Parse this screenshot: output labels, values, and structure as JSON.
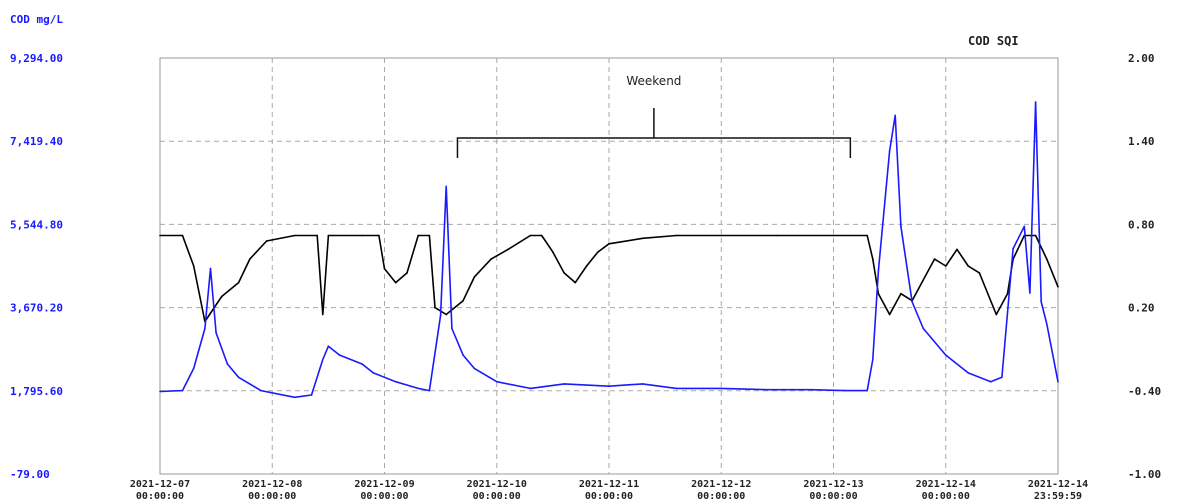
{
  "chart_data": {
    "type": "line",
    "title": "",
    "y_left": {
      "label": "COD mg/L",
      "min": -79.0,
      "max": 9294.0,
      "ticks": [
        "9,294.00",
        "7,419.40",
        "5,544.80",
        "3,670.20",
        "1,795.60",
        "-79.00"
      ],
      "tick_values": [
        9294.0,
        7419.4,
        5544.8,
        3670.2,
        1795.6,
        -79.0
      ],
      "color": "#1a1aff"
    },
    "y_right": {
      "label": "COD SQI",
      "min": -1.0,
      "max": 2.0,
      "ticks": [
        "2.00",
        "1.40",
        "0.80",
        "0.20",
        "-0.40",
        "-1.00"
      ],
      "tick_values": [
        2.0,
        1.4,
        0.8,
        0.2,
        -0.4,
        -1.0
      ],
      "color": "#222222"
    },
    "x": {
      "min": 0,
      "max": 7.9999,
      "ticks": [
        {
          "pos": 0,
          "date": "2021-12-07",
          "time": "00:00:00"
        },
        {
          "pos": 1,
          "date": "2021-12-08",
          "time": "00:00:00"
        },
        {
          "pos": 2,
          "date": "2021-12-09",
          "time": "00:00:00"
        },
        {
          "pos": 3,
          "date": "2021-12-10",
          "time": "00:00:00"
        },
        {
          "pos": 4,
          "date": "2021-12-11",
          "time": "00:00:00"
        },
        {
          "pos": 5,
          "date": "2021-12-12",
          "time": "00:00:00"
        },
        {
          "pos": 6,
          "date": "2021-12-13",
          "time": "00:00:00"
        },
        {
          "pos": 7,
          "date": "2021-12-14",
          "time": "00:00:00"
        },
        {
          "pos": 7.9999,
          "date": "2021-12-14",
          "time": "23:59:59"
        }
      ]
    },
    "grid": true,
    "annotation": {
      "text": "Weekend",
      "x_start": 2.65,
      "x_end": 6.15
    },
    "series": [
      {
        "axis": "right",
        "color": "#000000",
        "points": [
          [
            0.0,
            0.72
          ],
          [
            0.2,
            0.72
          ],
          [
            0.3,
            0.5
          ],
          [
            0.4,
            0.1
          ],
          [
            0.55,
            0.28
          ],
          [
            0.7,
            0.38
          ],
          [
            0.8,
            0.55
          ],
          [
            0.95,
            0.68
          ],
          [
            1.2,
            0.72
          ],
          [
            1.4,
            0.72
          ],
          [
            1.45,
            0.15
          ],
          [
            1.5,
            0.72
          ],
          [
            1.8,
            0.72
          ],
          [
            1.95,
            0.72
          ],
          [
            2.0,
            0.48
          ],
          [
            2.1,
            0.38
          ],
          [
            2.2,
            0.45
          ],
          [
            2.3,
            0.72
          ],
          [
            2.4,
            0.72
          ],
          [
            2.45,
            0.2
          ],
          [
            2.55,
            0.15
          ],
          [
            2.7,
            0.25
          ],
          [
            2.8,
            0.42
          ],
          [
            2.95,
            0.55
          ],
          [
            3.1,
            0.62
          ],
          [
            3.3,
            0.72
          ],
          [
            3.4,
            0.72
          ],
          [
            3.5,
            0.6
          ],
          [
            3.6,
            0.45
          ],
          [
            3.7,
            0.38
          ],
          [
            3.8,
            0.5
          ],
          [
            3.9,
            0.6
          ],
          [
            4.0,
            0.66
          ],
          [
            4.3,
            0.7
          ],
          [
            4.6,
            0.72
          ],
          [
            5.0,
            0.72
          ],
          [
            5.5,
            0.72
          ],
          [
            6.0,
            0.72
          ],
          [
            6.3,
            0.72
          ],
          [
            6.35,
            0.55
          ],
          [
            6.4,
            0.3
          ],
          [
            6.5,
            0.15
          ],
          [
            6.6,
            0.3
          ],
          [
            6.7,
            0.25
          ],
          [
            6.8,
            0.4
          ],
          [
            6.9,
            0.55
          ],
          [
            7.0,
            0.5
          ],
          [
            7.1,
            0.62
          ],
          [
            7.2,
            0.5
          ],
          [
            7.3,
            0.45
          ],
          [
            7.45,
            0.15
          ],
          [
            7.55,
            0.3
          ],
          [
            7.6,
            0.55
          ],
          [
            7.7,
            0.72
          ],
          [
            7.8,
            0.72
          ],
          [
            7.9,
            0.55
          ],
          [
            8.0,
            0.35
          ]
        ]
      },
      {
        "axis": "left",
        "color": "#1a1aff",
        "points": [
          [
            0.0,
            1780
          ],
          [
            0.2,
            1800
          ],
          [
            0.3,
            2300
          ],
          [
            0.4,
            3200
          ],
          [
            0.45,
            4550
          ],
          [
            0.5,
            3100
          ],
          [
            0.6,
            2400
          ],
          [
            0.7,
            2100
          ],
          [
            0.9,
            1800
          ],
          [
            1.2,
            1650
          ],
          [
            1.35,
            1700
          ],
          [
            1.45,
            2500
          ],
          [
            1.5,
            2800
          ],
          [
            1.6,
            2600
          ],
          [
            1.8,
            2400
          ],
          [
            1.9,
            2200
          ],
          [
            2.1,
            2000
          ],
          [
            2.3,
            1850
          ],
          [
            2.4,
            1800
          ],
          [
            2.5,
            3500
          ],
          [
            2.55,
            6400
          ],
          [
            2.6,
            3200
          ],
          [
            2.7,
            2600
          ],
          [
            2.8,
            2300
          ],
          [
            3.0,
            2000
          ],
          [
            3.3,
            1850
          ],
          [
            3.6,
            1950
          ],
          [
            4.0,
            1900
          ],
          [
            4.3,
            1950
          ],
          [
            4.6,
            1850
          ],
          [
            5.0,
            1850
          ],
          [
            5.4,
            1820
          ],
          [
            5.8,
            1820
          ],
          [
            6.1,
            1800
          ],
          [
            6.3,
            1800
          ],
          [
            6.35,
            2500
          ],
          [
            6.4,
            4500
          ],
          [
            6.5,
            7200
          ],
          [
            6.55,
            8000
          ],
          [
            6.6,
            5500
          ],
          [
            6.7,
            3800
          ],
          [
            6.8,
            3200
          ],
          [
            7.0,
            2600
          ],
          [
            7.2,
            2200
          ],
          [
            7.4,
            2000
          ],
          [
            7.5,
            2100
          ],
          [
            7.6,
            5000
          ],
          [
            7.7,
            5500
          ],
          [
            7.75,
            4000
          ],
          [
            7.8,
            8300
          ],
          [
            7.85,
            3800
          ],
          [
            7.9,
            3300
          ],
          [
            8.0,
            2000
          ]
        ]
      }
    ]
  }
}
